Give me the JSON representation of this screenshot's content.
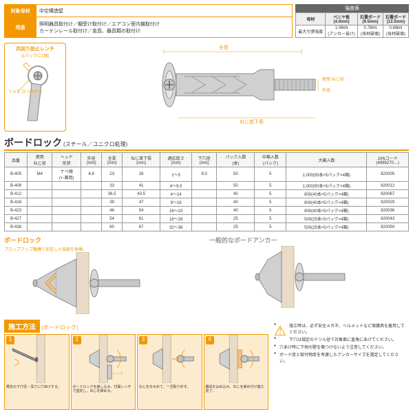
{
  "info": {
    "target_label": "対象母材",
    "target_val": "中空構造壁",
    "use_label": "用途",
    "use_val": "照明器具取付け／棚受け取付け／エアコン室内機取付け\nカーテンレール取付け／金具、器具類の取付け"
  },
  "strength": {
    "title": "強度表",
    "h1": "母材",
    "h2": "ベニヤ板\n(4.0mm)",
    "h3": "石膏ボード\n(9.5mm)",
    "h4": "石膏ボード\n(12.5mm)",
    "r1": "最大引張強度",
    "v1": "1.06kN\n(アンカー抜け)",
    "v2": "0.78kN\n(母材破壊)",
    "v3": "0.88kN\n(母材破壊)"
  },
  "wrench": {
    "title": "共回り防止レンチ",
    "sub": "(1パックに1個)",
    "note": "ツメを\nひっかける"
  },
  "main_labels": {
    "l1": "全長",
    "l2": "使用\nねじ径",
    "l3": "外径",
    "l4": "ねじ首下長"
  },
  "product": {
    "name": "ボードロック",
    "material": "(スチール／ユニクロ処理)"
  },
  "spec": {
    "headers": [
      "品番",
      "使用\nねじ径",
      "ヘッド\n形状",
      "外径\n(mm)",
      "全長\n(mm)",
      "ねじ首下長\n(mm)",
      "適応厚さ\n(mm)",
      "下穴径\n(mm)",
      "パック入数\n(本)",
      "中箱入数\n(パック)",
      "大箱入数",
      "JANコード\n(4989270…)"
    ],
    "rows": [
      [
        "B-405",
        "M4",
        "ナベ頭\n(+-兼用)",
        "6.8",
        "23",
        "28",
        "1～5",
        "9.0",
        "50",
        "5",
        "1,000(50本×5パック×4箱)",
        "820005"
      ],
      [
        "B-409",
        "",
        "",
        "",
        "33",
        "41",
        "4～9.5",
        "",
        "50",
        "5",
        "1,000(50本×5パック×4箱)",
        "820012"
      ],
      [
        "B-412",
        "",
        "",
        "",
        "36.5",
        "43.5",
        "4～14",
        "",
        "40",
        "5",
        "800(40本×5パック×4箱)",
        "820067"
      ],
      [
        "B-416",
        "",
        "",
        "",
        "39",
        "47",
        "9～16",
        "",
        "40",
        "5",
        "800(40本×5パック×4箱)",
        "820029"
      ],
      [
        "B-423",
        "",
        "",
        "",
        "46",
        "54",
        "16～23",
        "",
        "40",
        "5",
        "800(40本×5パック×4箱)",
        "820036"
      ],
      [
        "B-427",
        "",
        "",
        "",
        "54",
        "61",
        "18～28",
        "",
        "25",
        "5",
        "500(25本×5パック×4箱)",
        "820043"
      ],
      [
        "B-438",
        "",
        "",
        "",
        "60",
        "67",
        "32～38",
        "",
        "25",
        "5",
        "500(25本×5パック×4箱)",
        "820050"
      ]
    ]
  },
  "compare": {
    "t1": "ボードロック",
    "s1": "プロップアップ機構で安定した強度を発揮。",
    "t2": "一般的なボードアンカー"
  },
  "install": {
    "title": "施工方法",
    "sub": "(ボードロック)",
    "steps": [
      {
        "n": "1",
        "t": "規定の下穴径・深さに穴あけする。"
      },
      {
        "n": "2",
        "t": "ボードロックを差し込み、付属レンチで固定し、ねじを締める。",
        "label": "レンチ"
      },
      {
        "n": "3",
        "t": "ねじをゆるめて、一旦取り外す。"
      },
      {
        "n": "4",
        "t": "器具をはめ込み、ねじを締め付け施工完了。"
      }
    ]
  },
  "warnings": [
    "施工時は、必ず安全メガネ、ヘルメットなど保護具を着用してください。",
    "下穴は規定のドリル径で対象面に直角にあけてください。",
    "穴あけ時に下地の壁を傷つけないよう注意してください。",
    "ボード厚と取付物厚を考慮したアンカーサイズを選定してください。"
  ],
  "colors": {
    "accent": "#f39800",
    "steel": "#c0c0c0",
    "steel_dark": "#888",
    "wall": "#e8dcc8"
  }
}
